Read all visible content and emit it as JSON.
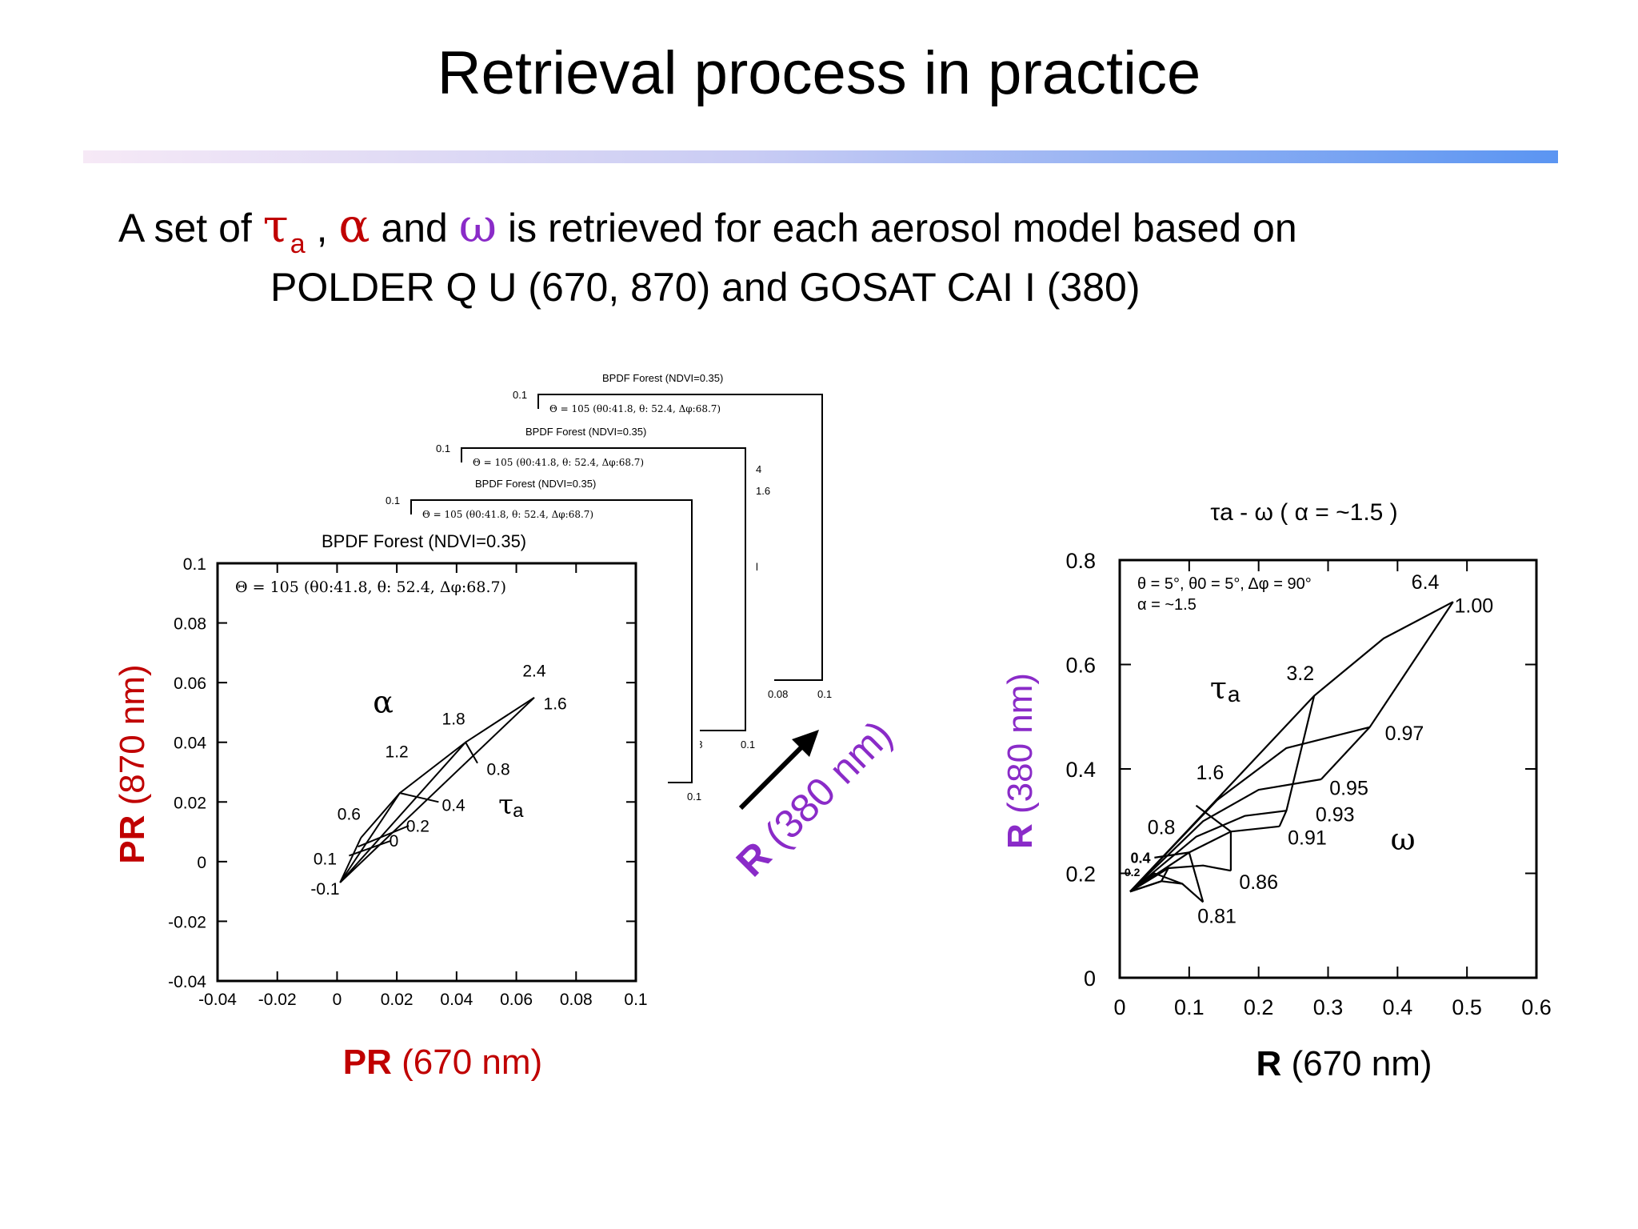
{
  "slide": {
    "title": "Retrieval process in practice",
    "subtitle": {
      "part1": "A set of ",
      "tau": "τ",
      "tau_sub": "a",
      "part2": " , ",
      "alpha": "α",
      "part3": " and ",
      "omega": "ω",
      "part4": " is retrieved for each aerosol model based on",
      "line2": "POLDER Q U (670, 870)  and GOSAT CAI  I (380)"
    }
  },
  "colors": {
    "red": "#c00000",
    "purple": "#8a2bc8",
    "rule_start": "#f6e9f6",
    "rule_end": "#5b95f2"
  },
  "arrow_label": {
    "bold": "R",
    "rest": " (380 nm)"
  },
  "chart_data": [
    {
      "type": "line",
      "title": "BPDF Forest  (NDVI=0.35)",
      "annotation": "Θ = 105 (θ0:41.8, θ: 52.4, Δφ:68.7)",
      "stack_titles": [
        "BPDF Forest  (NDVI=0.35)",
        "BPDF Forest  (NDVI=0.35)",
        "BPDF Forest  (NDVI=0.35)"
      ],
      "stack_annotations": [
        "Θ = 105 (θ0:41.8, θ: 52.4, Δφ:68.7)",
        "Θ = 105 (θ0:41.8, θ: 52.4, Δφ:68.7)",
        "Θ = 105 (θ0:41.8, θ: 52.4, Δφ:68.7)"
      ],
      "stack_tick_labels": [
        [
          "0.1",
          "08",
          "0.1"
        ],
        [
          "0.1",
          "08",
          "0.1"
        ],
        [
          "0.1",
          "0.08",
          "0.1"
        ]
      ],
      "stack_fragments": [
        "4",
        "1.6",
        "l"
      ],
      "xlabel_bold": "PR",
      "xlabel_rest": " (670 nm)",
      "ylabel_bold": "PR",
      "ylabel_rest": " (870 nm)",
      "xlim": [
        -0.04,
        0.1
      ],
      "ylim": [
        -0.04,
        0.1
      ],
      "xticks": [
        "-0.04",
        "-0.02",
        "0",
        "0.02",
        "0.04",
        "0.06",
        "0.08",
        "0.1"
      ],
      "yticks": [
        "0.1",
        "0.08",
        "0.06",
        "0.04",
        "0.02",
        "0",
        "-0.02",
        "-0.04"
      ],
      "param_symbols": {
        "alpha": "α",
        "tau": "τ",
        "tau_sub": "a"
      },
      "alpha_lines": [
        {
          "label": "0.6",
          "points": [
            [
              0.001,
              -0.007
            ],
            [
              0.008,
              0.008
            ]
          ]
        },
        {
          "label": "1.2",
          "points": [
            [
              0.001,
              -0.007
            ],
            [
              0.021,
              0.023
            ]
          ]
        },
        {
          "label": "1.8",
          "points": [
            [
              0.001,
              -0.007
            ],
            [
              0.043,
              0.04
            ]
          ]
        },
        {
          "label": "2.4",
          "points": [
            [
              0.001,
              -0.007
            ],
            [
              0.066,
              0.055
            ]
          ]
        }
      ],
      "tau_lines": [
        {
          "label": "0.1",
          "points": [
            [
              0.001,
              -0.007
            ]
          ]
        },
        {
          "label": "0",
          "points": [
            [
              0.004,
              0.002
            ],
            [
              0.018,
              0.007
            ]
          ]
        },
        {
          "label": "0.2",
          "points": [
            [
              0.007,
              0.005
            ],
            [
              0.024,
              0.012
            ]
          ]
        },
        {
          "label": "0.4",
          "points": [
            [
              0.008,
              0.008
            ],
            [
              0.021,
              0.023
            ],
            [
              0.034,
              0.02
            ]
          ]
        },
        {
          "label": "0.8",
          "points": [
            [
              0.021,
              0.023
            ],
            [
              0.043,
              0.04
            ],
            [
              0.047,
              0.033
            ]
          ]
        },
        {
          "label": "1.6",
          "points": [
            [
              0.043,
              0.04
            ],
            [
              0.066,
              0.055
            ]
          ]
        }
      ],
      "point_labels": [
        {
          "text": "-0.1",
          "x": -0.004,
          "y": -0.011
        },
        {
          "text": "0.1",
          "x": -0.004,
          "y": -0.001
        },
        {
          "text": "0.6",
          "x": 0.004,
          "y": 0.014
        },
        {
          "text": "0",
          "x": 0.019,
          "y": 0.005
        },
        {
          "text": "0.2",
          "x": 0.027,
          "y": 0.01
        },
        {
          "text": "0.4",
          "x": 0.039,
          "y": 0.017
        },
        {
          "text": "0.8",
          "x": 0.054,
          "y": 0.029
        },
        {
          "text": "1.2",
          "x": 0.02,
          "y": 0.035
        },
        {
          "text": "1.8",
          "x": 0.039,
          "y": 0.046
        },
        {
          "text": "2.4",
          "x": 0.066,
          "y": 0.062
        },
        {
          "text": "1.6",
          "x": 0.073,
          "y": 0.051
        }
      ]
    },
    {
      "type": "line",
      "title": "τa - ω ( α = ~1.5 )",
      "annotation_line1": "θ = 5°, θ0 = 5°, Δφ = 90°",
      "annotation_line2": "α = ~1.5",
      "xlabel_bold": "R",
      "xlabel_rest": " (670 nm)",
      "ylabel_bold": "R",
      "ylabel_rest": " (380 nm)",
      "xlim": [
        0,
        0.6
      ],
      "ylim": [
        0,
        0.8
      ],
      "xticks": [
        "0",
        "0.1",
        "0.2",
        "0.3",
        "0.4",
        "0.5",
        "0.6"
      ],
      "yticks": [
        "0.8",
        "0.6",
        "0.4",
        "0.2",
        "0"
      ],
      "param_symbols": {
        "tau": "τ",
        "tau_sub": "a",
        "omega": "ω"
      },
      "omega_curves": [
        {
          "label": "1.00",
          "points": [
            [
              0.015,
              0.165
            ],
            [
              0.28,
              0.54
            ],
            [
              0.38,
              0.65
            ],
            [
              0.48,
              0.72
            ]
          ]
        },
        {
          "label": "0.97",
          "points": [
            [
              0.015,
              0.165
            ],
            [
              0.14,
              0.34
            ],
            [
              0.24,
              0.44
            ],
            [
              0.36,
              0.48
            ]
          ]
        },
        {
          "label": "0.95",
          "points": [
            [
              0.015,
              0.165
            ],
            [
              0.12,
              0.3
            ],
            [
              0.2,
              0.36
            ],
            [
              0.29,
              0.38
            ]
          ]
        },
        {
          "label": "0.93",
          "points": [
            [
              0.015,
              0.165
            ],
            [
              0.11,
              0.27
            ],
            [
              0.18,
              0.31
            ],
            [
              0.24,
              0.32
            ]
          ]
        },
        {
          "label": "0.91",
          "points": [
            [
              0.015,
              0.165
            ],
            [
              0.1,
              0.24
            ],
            [
              0.16,
              0.28
            ],
            [
              0.23,
              0.29
            ]
          ]
        },
        {
          "label": "0.86",
          "points": [
            [
              0.015,
              0.165
            ],
            [
              0.07,
              0.21
            ],
            [
              0.12,
              0.215
            ],
            [
              0.16,
              0.205
            ]
          ]
        },
        {
          "label": "0.81",
          "points": [
            [
              0.015,
              0.165
            ],
            [
              0.06,
              0.185
            ],
            [
              0.09,
              0.18
            ],
            [
              0.12,
              0.145
            ]
          ]
        }
      ],
      "tau_lines": [
        {
          "label": "0.2",
          "points": [
            [
              0.015,
              0.165
            ],
            [
              0.06,
              0.185
            ],
            [
              0.07,
              0.21
            ]
          ]
        },
        {
          "label": "0.4",
          "points": [
            [
              0.015,
              0.165
            ],
            [
              0.05,
              0.2
            ],
            [
              0.09,
              0.18
            ]
          ]
        },
        {
          "label": "0.8",
          "points": [
            [
              0.05,
              0.23
            ],
            [
              0.1,
              0.24
            ],
            [
              0.12,
              0.145
            ]
          ]
        },
        {
          "label": "1.6",
          "points": [
            [
              0.11,
              0.33
            ],
            [
              0.16,
              0.28
            ],
            [
              0.16,
              0.205
            ]
          ]
        },
        {
          "label": "3.2",
          "points": [
            [
              0.28,
              0.54
            ],
            [
              0.24,
              0.32
            ],
            [
              0.23,
              0.29
            ]
          ]
        },
        {
          "label": "6.4",
          "points": [
            [
              0.48,
              0.72
            ],
            [
              0.36,
              0.48
            ],
            [
              0.29,
              0.38
            ]
          ]
        }
      ],
      "point_labels": [
        {
          "text": "6.4",
          "x": 0.44,
          "y": 0.745
        },
        {
          "text": "1.00",
          "x": 0.51,
          "y": 0.7
        },
        {
          "text": "3.2",
          "x": 0.26,
          "y": 0.57
        },
        {
          "text": "0.97",
          "x": 0.41,
          "y": 0.455
        },
        {
          "text": "1.6",
          "x": 0.13,
          "y": 0.38
        },
        {
          "text": "0.95",
          "x": 0.33,
          "y": 0.35
        },
        {
          "text": "0.93",
          "x": 0.31,
          "y": 0.3
        },
        {
          "text": "0.8",
          "x": 0.06,
          "y": 0.275
        },
        {
          "text": "0.91",
          "x": 0.27,
          "y": 0.255
        },
        {
          "text": "0.4",
          "x": 0.03,
          "y": 0.22
        },
        {
          "text": "0.2",
          "x": 0.018,
          "y": 0.195
        },
        {
          "text": "0.86",
          "x": 0.2,
          "y": 0.17
        },
        {
          "text": "0.81",
          "x": 0.14,
          "y": 0.105
        }
      ]
    }
  ]
}
